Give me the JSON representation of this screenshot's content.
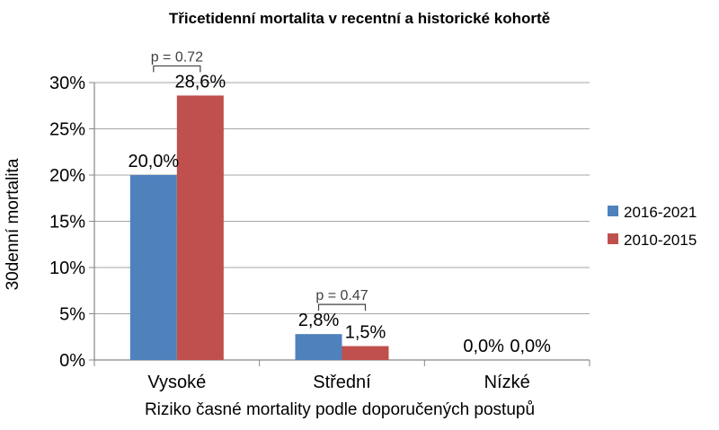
{
  "colors": {
    "series_1": "#4F81BD",
    "series_2": "#C0504D",
    "grid": "#A6A6A6",
    "axis": "#868686",
    "text": "#000000",
    "annotation": "#404040"
  },
  "chart_data": {
    "type": "bar",
    "title": "Třicetidenní mortalita v recentní a historické kohortě",
    "xlabel": "Riziko časné mortality podle doporučených postupů",
    "ylabel": "30denní mortalita",
    "categories": [
      "Vysoké",
      "Střední",
      "Nízké"
    ],
    "series": [
      {
        "name": "2016-2021",
        "values": [
          20.0,
          2.8,
          0.0
        ],
        "labels": [
          "20,0%",
          "2,8%",
          "0,0%"
        ]
      },
      {
        "name": "2010-2015",
        "values": [
          28.6,
          1.5,
          0.0
        ],
        "labels": [
          "28,6%",
          "1,5%",
          "0,0%"
        ]
      }
    ],
    "ylim": [
      0,
      30
    ],
    "yticks": [
      0,
      5,
      10,
      15,
      20,
      25,
      30
    ],
    "ytick_labels": [
      "0%",
      "5%",
      "10%",
      "15%",
      "20%",
      "25%",
      "30%"
    ],
    "grid": true,
    "legend_position": "right",
    "annotations": [
      {
        "text": "p = 0.72",
        "category": "Vysoké"
      },
      {
        "text": "p = 0.47",
        "category": "Střední"
      }
    ]
  }
}
